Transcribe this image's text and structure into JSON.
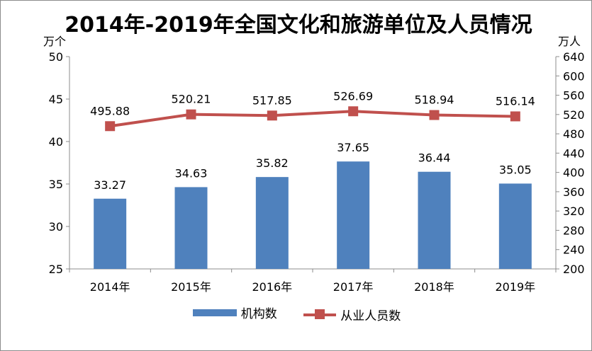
{
  "chart_data": {
    "type": "bar",
    "title": "2014年-2019年全国文化和旅游单位及人员情况",
    "categories": [
      "2014年",
      "2015年",
      "2016年",
      "2017年",
      "2018年",
      "2019年"
    ],
    "series": [
      {
        "name": "机构数",
        "type": "bar",
        "axis": "left",
        "values": [
          33.27,
          34.63,
          35.82,
          37.65,
          36.44,
          35.05
        ],
        "color": "#4f81bd"
      },
      {
        "name": "从业人员数",
        "type": "line",
        "axis": "right",
        "values": [
          495.88,
          520.21,
          517.85,
          526.69,
          518.94,
          516.14
        ],
        "color": "#c0504d"
      }
    ],
    "y_left": {
      "unit": "万个",
      "range": [
        25,
        50
      ],
      "ticks": [
        25,
        30,
        35,
        40,
        45,
        50
      ]
    },
    "y_right": {
      "unit": "万人",
      "range": [
        200,
        640
      ],
      "ticks": [
        200,
        240,
        280,
        320,
        360,
        400,
        440,
        480,
        520,
        560,
        600,
        640
      ]
    },
    "grid": false,
    "legend_position": "bottom"
  }
}
